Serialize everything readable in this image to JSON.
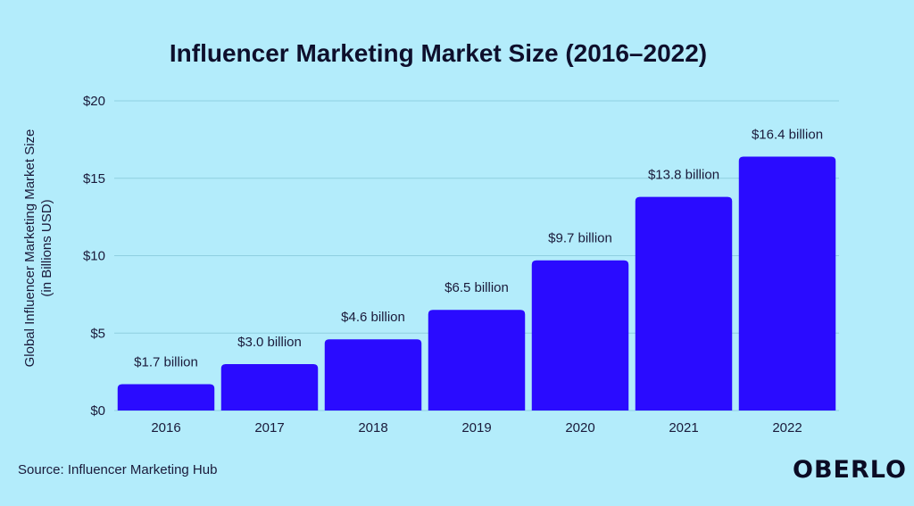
{
  "chart_data": {
    "type": "bar",
    "title": "Influencer Marketing Market Size (2016–2022)",
    "ylabel_lines": [
      "Global Influencer Marketing Market Size",
      "(in Billions USD)"
    ],
    "xlabel": "",
    "categories": [
      "2016",
      "2017",
      "2018",
      "2019",
      "2020",
      "2021",
      "2022"
    ],
    "values": [
      1.7,
      3.0,
      4.6,
      6.5,
      9.7,
      13.8,
      16.4
    ],
    "data_labels": [
      "$1.7 billion",
      "$3.0 billion",
      "$4.6 billion",
      "$6.5 billion",
      "$9.7 billion",
      "$13.8 billion",
      "$16.4 billion"
    ],
    "ylim": [
      0,
      20
    ],
    "y_ticks": [
      0,
      5,
      10,
      15,
      20
    ],
    "y_tick_labels": [
      "$0",
      "$5",
      "$10",
      "$15",
      "$20"
    ],
    "grid": true,
    "legend": "none"
  },
  "footer": {
    "source": "Source: Influencer Marketing Hub",
    "logo_text": "OBERLO"
  },
  "colors": {
    "background": "#b3ecfb",
    "bar": "#2a0bff",
    "grid": "#8fcfe0",
    "text": "#1a1a3a"
  }
}
